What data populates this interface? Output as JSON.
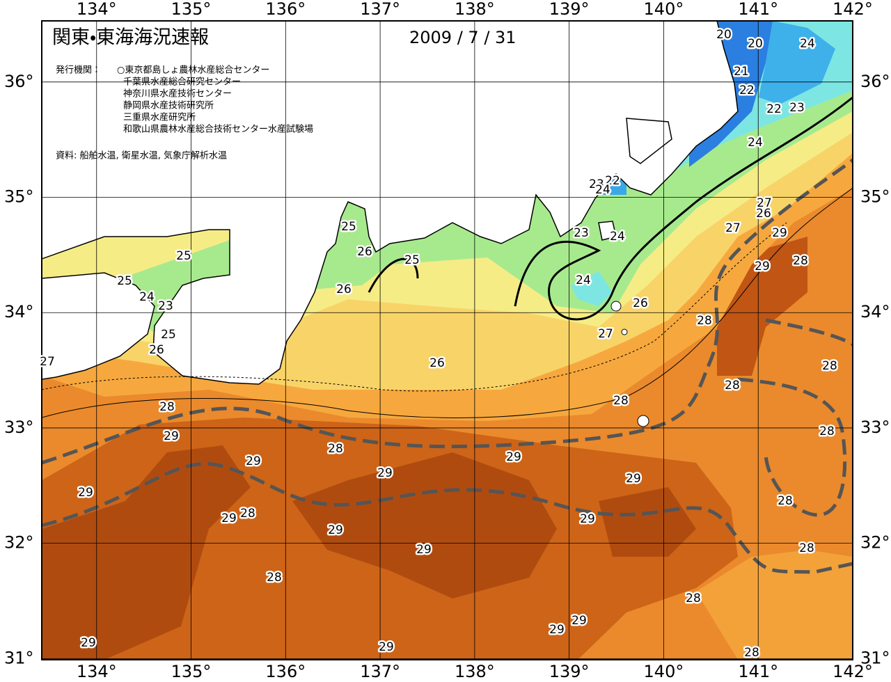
{
  "header": {
    "title": "関東・東海海況速報",
    "date": "2009 / 7 / 31",
    "agencies_label": "発行機関：",
    "agencies": [
      "○東京都島しょ農林水産総合センター",
      "千葉県水産総合研究センター",
      "神奈川県水産技術センター",
      "静岡県水産技術研究所",
      "三重県水産研究所",
      "和歌山県農林水産総合技術センター水産試験場"
    ],
    "source": "資料: 船舶水温, 衛星水温, 気象庁解析水温"
  },
  "map": {
    "xlim": [
      133.42,
      142
    ],
    "ylim": [
      30.99,
      36.53
    ],
    "xticks": [
      {
        "value": 134,
        "label": "134°"
      },
      {
        "value": 135,
        "label": "135°"
      },
      {
        "value": 136,
        "label": "136°"
      },
      {
        "value": 137,
        "label": "137°"
      },
      {
        "value": 138,
        "label": "138°"
      },
      {
        "value": 139,
        "label": "139°"
      },
      {
        "value": 140,
        "label": "140°"
      },
      {
        "value": 141,
        "label": "141°"
      },
      {
        "value": 142,
        "label": "142°"
      }
    ],
    "yticks": [
      {
        "value": 31,
        "label": "31°"
      },
      {
        "value": 32,
        "label": "32°"
      },
      {
        "value": 33,
        "label": "33°"
      },
      {
        "value": 34,
        "label": "34°"
      },
      {
        "value": 35,
        "label": "35°"
      },
      {
        "value": 36,
        "label": "36°"
      }
    ],
    "contour_labels": [
      "20",
      "20",
      "24",
      "21",
      "22",
      "22",
      "23",
      "24",
      "23",
      "22",
      "24",
      "27",
      "26",
      "25",
      "27",
      "29",
      "23",
      "24",
      "26",
      "25",
      "25",
      "29",
      "28",
      "25",
      "26",
      "24",
      "24",
      "23",
      "26",
      "28",
      "27",
      "25",
      "26",
      "27",
      "26",
      "28",
      "28",
      "28",
      "28",
      "29",
      "28",
      "28",
      "29",
      "29",
      "29",
      "29",
      "29",
      "28",
      "29",
      "28",
      "29",
      "29",
      "29",
      "28",
      "28",
      "28",
      "29",
      "29",
      "29",
      "29",
      "28"
    ]
  }
}
